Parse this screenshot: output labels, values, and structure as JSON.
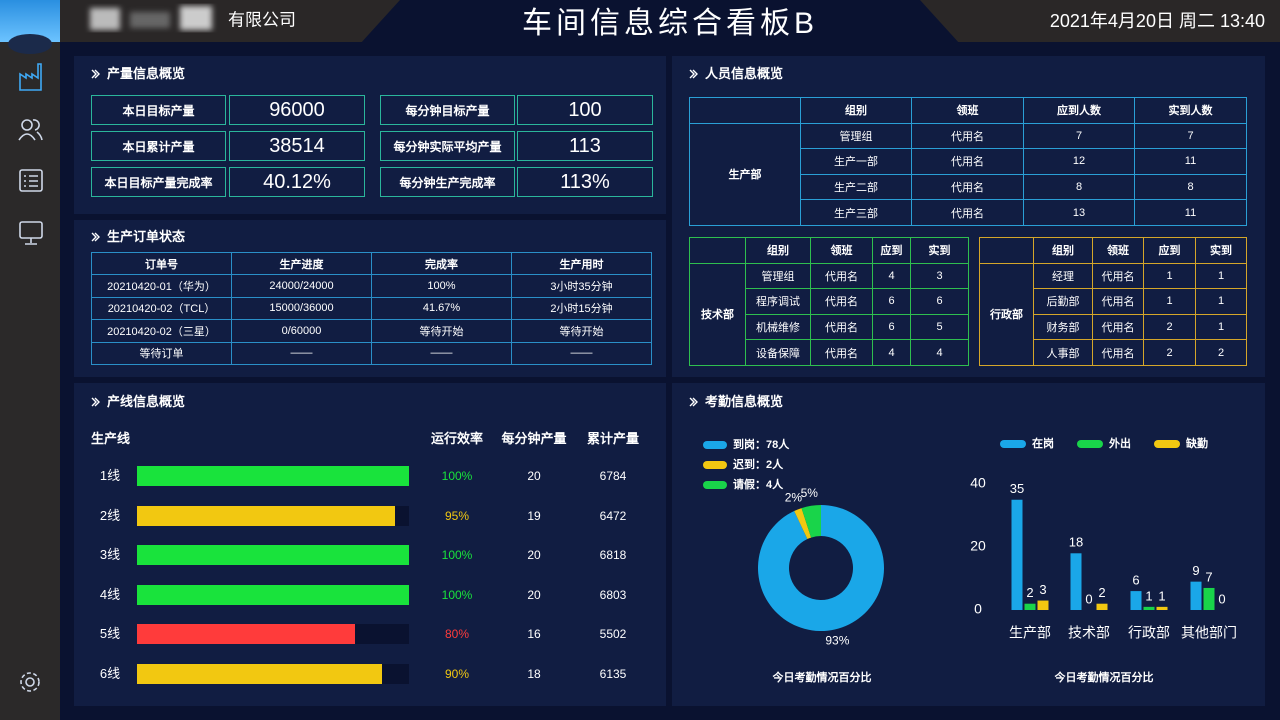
{
  "header": {
    "company": "有限公司",
    "title": "车间信息综合看板B",
    "datetime": "2021年4月20日 周二 13:40"
  },
  "production": {
    "title": "产量信息概览",
    "items": [
      {
        "label": "本日目标产量",
        "value": "96000"
      },
      {
        "label": "本日累计产量",
        "value": "38514"
      },
      {
        "label": "本日目标产量完成率",
        "value": "40.12%"
      },
      {
        "label": "每分钟目标产量",
        "value": "100"
      },
      {
        "label": "每分钟实际平均产量",
        "value": "113"
      },
      {
        "label": "每分钟生产完成率",
        "value": "113%"
      }
    ]
  },
  "orders": {
    "title": "生产订单状态",
    "columns": [
      "订单号",
      "生产进度",
      "完成率",
      "生产用时"
    ],
    "rows": [
      [
        "20210420-01（华为）",
        "24000/24000",
        "100%",
        "3小时35分钟"
      ],
      [
        "20210420-02（TCL）",
        "15000/36000",
        "41.67%",
        "2小时15分钟"
      ],
      [
        "20210420-02（三星）",
        "0/60000",
        "等待开始",
        "等待开始"
      ],
      [
        "等待订单",
        "——",
        "——",
        "——"
      ]
    ]
  },
  "personnel": {
    "title": "人员信息概览",
    "main": {
      "group": "生产部",
      "columns": [
        "组别",
        "领班",
        "应到人数",
        "实到人数"
      ],
      "rows": [
        [
          "管理组",
          "代用名",
          "7",
          "7"
        ],
        [
          "生产一部",
          "代用名",
          "12",
          "11"
        ],
        [
          "生产二部",
          "代用名",
          "8",
          "8"
        ],
        [
          "生产三部",
          "代用名",
          "13",
          "11"
        ]
      ]
    },
    "tech": {
      "group": "技术部",
      "columns": [
        "组别",
        "领班",
        "应到",
        "实到"
      ],
      "rows": [
        [
          "管理组",
          "代用名",
          "4",
          "3"
        ],
        [
          "程序调试",
          "代用名",
          "6",
          "6"
        ],
        [
          "机械维修",
          "代用名",
          "6",
          "5"
        ],
        [
          "设备保障",
          "代用名",
          "4",
          "4"
        ]
      ]
    },
    "admin": {
      "group": "行政部",
      "columns": [
        "组别",
        "领班",
        "应到",
        "实到"
      ],
      "rows": [
        [
          "经理",
          "代用名",
          "1",
          "1"
        ],
        [
          "后勤部",
          "代用名",
          "1",
          "1"
        ],
        [
          "财务部",
          "代用名",
          "2",
          "1"
        ],
        [
          "人事部",
          "代用名",
          "2",
          "2"
        ]
      ]
    }
  },
  "attendance": {
    "title": "考勤信息概览"
  },
  "chart_data": [
    {
      "type": "hbar",
      "title": "产线信息概览",
      "category_label": "生产线",
      "value_label": "运行效率",
      "categories": [
        "1线",
        "2线",
        "3线",
        "4线",
        "5线",
        "6线"
      ],
      "values": [
        100,
        95,
        100,
        100,
        80,
        90
      ],
      "value_labels": [
        "100%",
        "95%",
        "100%",
        "100%",
        "80%",
        "90%"
      ],
      "colors": [
        "#19e33c",
        "#f2c811",
        "#19e33c",
        "#19e33c",
        "#ff3b3b",
        "#f2c811"
      ],
      "xlim": [
        0,
        100
      ],
      "columns": [
        {
          "name": "每分钟产量",
          "values": [
            20,
            19,
            20,
            20,
            16,
            18
          ]
        },
        {
          "name": "累计产量",
          "values": [
            6784,
            6472,
            6818,
            6803,
            5502,
            6135
          ]
        }
      ]
    },
    {
      "type": "pie",
      "title": "今日考勤情况百分比",
      "categories": [
        "到岗：78人",
        "迟到：2人",
        "请假：4人"
      ],
      "values": [
        93,
        2,
        5
      ],
      "value_labels": [
        "93%",
        "2%",
        "5%"
      ],
      "colors": [
        "#1aa7e8",
        "#f2c811",
        "#19d44a"
      ]
    },
    {
      "type": "bar",
      "title": "今日考勤情况百分比",
      "categories": [
        "生产部",
        "技术部",
        "行政部",
        "其他部门"
      ],
      "series": [
        {
          "name": "在岗",
          "color": "#1aa7e8",
          "values": [
            35,
            18,
            6,
            9
          ]
        },
        {
          "name": "外出",
          "color": "#19d44a",
          "values": [
            2,
            0,
            1,
            7
          ]
        },
        {
          "name": "缺勤",
          "color": "#f2c811",
          "values": [
            3,
            2,
            1,
            0
          ]
        }
      ],
      "ylim": [
        0,
        40
      ],
      "yticks": [
        0,
        20,
        40
      ],
      "grid": false,
      "legend": "top"
    }
  ]
}
